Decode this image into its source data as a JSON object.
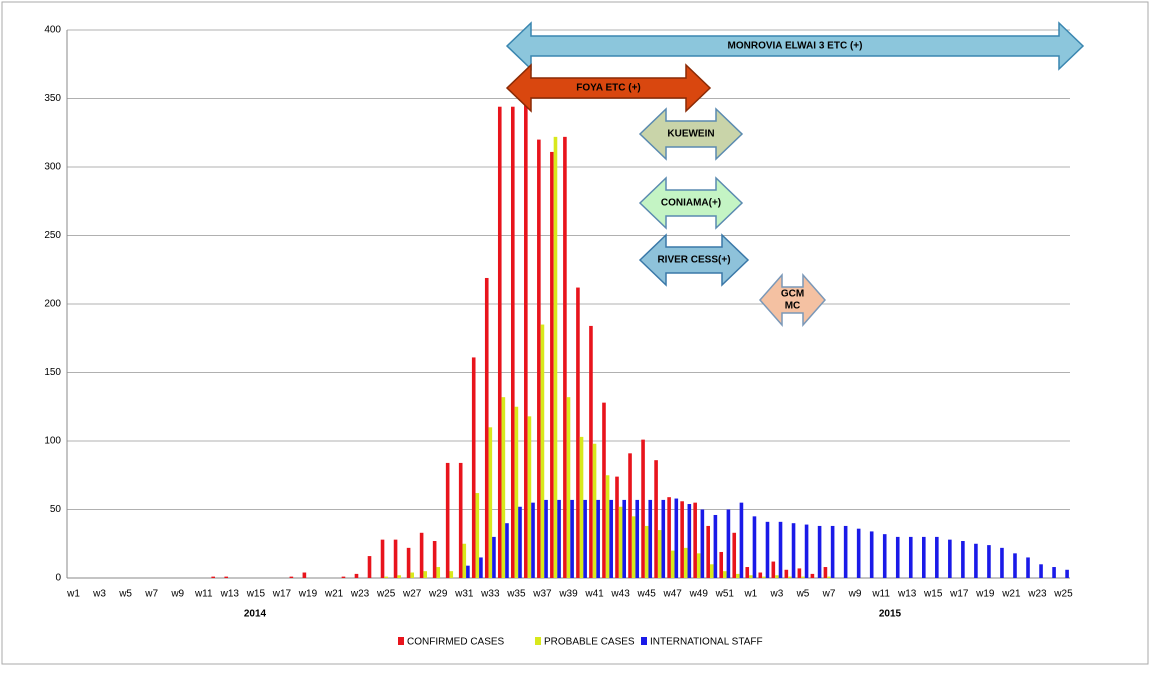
{
  "chart_data": {
    "type": "bar",
    "categories": [
      "w1",
      null,
      "w3",
      null,
      "w5",
      null,
      "w7",
      null,
      "w9",
      null,
      "w11",
      null,
      "w13",
      null,
      "w15",
      null,
      "w17",
      null,
      "w19",
      null,
      "w21",
      null,
      "w23",
      null,
      "w25",
      null,
      "w27",
      null,
      "w29",
      null,
      "w31",
      null,
      "w33",
      null,
      "w35",
      null,
      "w37",
      null,
      "w39",
      null,
      "w41",
      null,
      "w43",
      null,
      "w45",
      null,
      "w47",
      null,
      "w49",
      null,
      "w51",
      null,
      "w1",
      null,
      "w3",
      null,
      "w5",
      null,
      "w7",
      null,
      "w9",
      null,
      "w11",
      null,
      "w13",
      null,
      "w15",
      null,
      "w17",
      null,
      "w19",
      null,
      "w21",
      null,
      "w23",
      null,
      "w25"
    ],
    "year_labels": [
      "2014",
      "2015"
    ],
    "series": [
      {
        "name": "CONFIRMED CASES",
        "color": "#e8141c",
        "values": [
          0,
          0,
          0,
          0,
          0,
          0,
          0,
          0,
          0,
          0,
          0,
          1,
          1,
          0,
          0,
          0,
          0,
          1,
          4,
          0,
          0,
          1,
          3,
          16,
          28,
          28,
          22,
          33,
          27,
          84,
          84,
          161,
          219,
          344,
          344,
          345,
          320,
          311,
          322,
          212,
          184,
          128,
          74,
          91,
          101,
          86,
          59,
          56,
          55,
          38,
          19,
          33,
          8,
          4,
          12,
          6,
          7,
          3,
          8,
          0,
          0,
          0,
          0,
          0,
          0,
          0,
          0,
          0,
          0,
          0,
          0,
          0,
          0,
          0,
          0,
          0,
          0
        ]
      },
      {
        "name": "PROBABLE CASES",
        "color": "#d8e81c",
        "values": [
          0,
          0,
          0,
          0,
          0,
          0,
          0,
          0,
          0,
          0,
          0,
          0,
          0,
          0,
          0,
          0,
          0,
          0,
          0,
          0,
          0,
          0,
          0,
          0,
          1,
          2,
          4,
          5,
          8,
          5,
          25,
          62,
          110,
          132,
          125,
          118,
          185,
          322,
          132,
          103,
          98,
          75,
          52,
          45,
          38,
          35,
          20,
          22,
          18,
          10,
          5,
          3,
          2,
          1,
          2,
          1,
          1,
          0,
          1,
          0,
          0,
          0,
          0,
          0,
          0,
          0,
          0,
          0,
          0,
          0,
          0,
          0,
          0,
          0,
          0,
          0,
          0
        ]
      },
      {
        "name": "INTERNATIONAL STAFF",
        "color": "#1a1ae8",
        "values": [
          0,
          0,
          0,
          0,
          0,
          0,
          0,
          0,
          0,
          0,
          0,
          0,
          0,
          0,
          0,
          0,
          0,
          0,
          0,
          0,
          0,
          0,
          0,
          0,
          0,
          0,
          0,
          0,
          0,
          0,
          9,
          15,
          30,
          40,
          52,
          55,
          57,
          57,
          57,
          57,
          57,
          57,
          57,
          57,
          57,
          57,
          58,
          54,
          50,
          46,
          50,
          55,
          45,
          41,
          41,
          40,
          39,
          38,
          38,
          38,
          36,
          34,
          32,
          30,
          30,
          30,
          30,
          28,
          27,
          25,
          24,
          22,
          18,
          15,
          10,
          8,
          6
        ]
      }
    ],
    "ylim": [
      0,
      400
    ],
    "yticks": [
      0,
      50,
      100,
      150,
      200,
      250,
      300,
      350,
      400
    ],
    "grid": true,
    "annotations": [
      {
        "text": "MONROVIA ELWAI 3 ETC (+)",
        "color": "#8cc6dc"
      },
      {
        "text": "FOYA ETC (+)",
        "color": "#d9470f"
      },
      {
        "text": "KUEWEIN",
        "color": "#c9d4a9"
      },
      {
        "text": "CONIAMA(+)",
        "color": "#c4f4c4"
      },
      {
        "text": "RIVER CESS(+)",
        "color": "#8ec2da"
      },
      {
        "text": [
          "GCM",
          "MC"
        ],
        "color": "#f4c1a2"
      }
    ]
  }
}
